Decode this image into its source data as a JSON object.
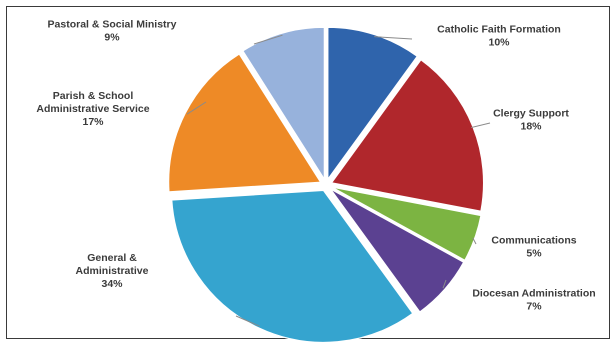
{
  "chart_data": {
    "type": "pie",
    "exploded": true,
    "slices": [
      {
        "key": "catholic",
        "label_lines": [
          "Catholic Faith Formation",
          "10%"
        ],
        "category": "Catholic Faith Formation",
        "value": 10,
        "color": "#2f64ac"
      },
      {
        "key": "clergy",
        "label_lines": [
          "Clergy Support",
          "18%"
        ],
        "category": "Clergy Support",
        "value": 18,
        "color": "#b0272c"
      },
      {
        "key": "communications",
        "label_lines": [
          "Communications",
          "5%"
        ],
        "category": "Communications",
        "value": 5,
        "color": "#7cb442"
      },
      {
        "key": "diocesan",
        "label_lines": [
          "Diocesan Administration",
          "7%"
        ],
        "category": "Diocesan Administration",
        "value": 7,
        "color": "#5b4191"
      },
      {
        "key": "general",
        "label_lines": [
          "General &",
          "Administrative",
          "34%"
        ],
        "category": "General & Administrative",
        "value": 34,
        "color": "#35a4cf"
      },
      {
        "key": "parish",
        "label_lines": [
          "Parish & School",
          "Administrative Service",
          "17%"
        ],
        "category": "Parish & School Administrative Service",
        "value": 17,
        "color": "#ee8a26"
      },
      {
        "key": "pastoral",
        "label_lines": [
          "Pastoral & Social Ministry",
          "9%"
        ],
        "category": "Pastoral & Social Ministry",
        "value": 9,
        "color": "#97b2dc"
      }
    ]
  }
}
